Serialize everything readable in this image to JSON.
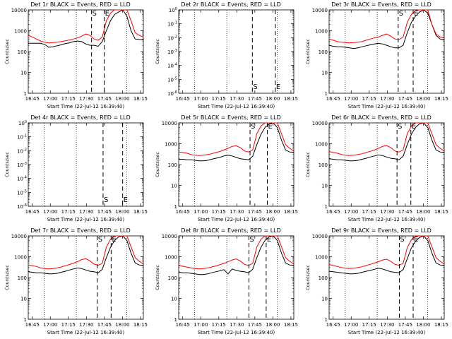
{
  "chart_data": [
    {
      "id": "p1",
      "type": "line",
      "title": "Det 1r BLACK = Events, RED = LLD",
      "ylabel": "Counts/sec",
      "xlabel": "Start Time (22-Jul-12 16:39:40)",
      "yscale": "log",
      "ylim": [
        1,
        10000
      ],
      "yticks": [
        "1",
        "10",
        "100",
        "1000",
        "10000"
      ],
      "xticks": [
        "16:45",
        "17:00",
        "17:15",
        "17:30",
        "17:45",
        "18:00",
        "18:15"
      ],
      "series": [
        {
          "color": "#000000",
          "y": [
            250,
            250,
            250,
            250,
            220,
            160,
            170,
            190,
            210,
            240,
            260,
            300,
            320,
            300,
            230,
            200,
            200,
            180,
            300,
            1000,
            3000,
            6000,
            8000,
            10000,
            5000,
            1000,
            400,
            380,
            370
          ]
        },
        {
          "color": "#ff0000",
          "y": [
            600,
            500,
            400,
            320,
            280,
            260,
            270,
            280,
            300,
            330,
            360,
            400,
            450,
            550,
            700,
            600,
            400,
            350,
            500,
            3000,
            7000,
            10000,
            10000,
            10000,
            10000,
            3000,
            800,
            600,
            500
          ]
        }
      ],
      "markers": [
        {
          "label": "S",
          "pos": 0.55
        },
        {
          "label": "E",
          "pos": 0.66
        }
      ]
    },
    {
      "id": "p2",
      "type": "line",
      "title": "Det 2r BLACK = Events, RED = LLD",
      "ylabel": "Counts/sec",
      "xlabel": "Start Time (22-Jul-12 16:39:40)",
      "yscale": "log",
      "ylim": [
        "10^-6",
        "10^0"
      ],
      "yticks": [
        "10^-6",
        "10^-5",
        "10^-4",
        "10^-3",
        "10^-2",
        "10^-1",
        "10^0"
      ],
      "xticks": [
        "16:45",
        "17:00",
        "17:15",
        "17:30",
        "17:45",
        "18:00",
        "18:15"
      ],
      "series": [],
      "markers": [
        {
          "label": "S",
          "pos": 0.64
        },
        {
          "label": "E",
          "pos": 0.84
        }
      ]
    },
    {
      "id": "p3",
      "type": "line",
      "title": "Det 3r BLACK = Events, RED = LLD",
      "ylabel": "Counts/sec",
      "xlabel": "Start Time (22-Jul-12 16:39:40)",
      "yscale": "log",
      "ylim": [
        1,
        10000
      ],
      "yticks": [
        "1",
        "10",
        "100",
        "1000",
        "10000"
      ],
      "xticks": [
        "16:45",
        "17:00",
        "17:15",
        "17:30",
        "17:45",
        "18:00",
        "18:15"
      ],
      "series": [
        {
          "color": "#000000",
          "y": [
            200,
            180,
            170,
            170,
            160,
            150,
            140,
            150,
            170,
            190,
            210,
            230,
            250,
            230,
            200,
            170,
            150,
            150,
            200,
            800,
            2500,
            5000,
            8000,
            10000,
            7000,
            2000,
            600,
            400,
            350
          ]
        },
        {
          "color": "#ff0000",
          "y": [
            400,
            350,
            300,
            280,
            270,
            260,
            270,
            280,
            300,
            350,
            400,
            450,
            500,
            600,
            700,
            550,
            400,
            380,
            500,
            2500,
            6000,
            9000,
            10000,
            10000,
            10000,
            2000,
            700,
            500,
            450
          ]
        }
      ],
      "markers": [
        {
          "label": "S",
          "pos": 0.6
        },
        {
          "label": "E",
          "pos": 0.73
        }
      ]
    },
    {
      "id": "p4",
      "type": "line",
      "title": "Det 4r BLACK = Events, RED = LLD",
      "ylabel": "Counts/sec",
      "xlabel": "Start Time (22-Jul-12 16:39:40)",
      "yscale": "log",
      "ylim": [
        "10^-6",
        "10^0"
      ],
      "yticks": [
        "10^-6",
        "10^-5",
        "10^-4",
        "10^-3",
        "10^-2",
        "10^-1",
        "10^0"
      ],
      "xticks": [
        "16:45",
        "17:00",
        "17:15",
        "17:30",
        "17:45",
        "18:00",
        "18:15"
      ],
      "series": [],
      "markers": [
        {
          "label": "S",
          "pos": 0.65
        },
        {
          "label": "E",
          "pos": 0.82
        }
      ]
    },
    {
      "id": "p5",
      "type": "line",
      "title": "Det 5r BLACK = Events, RED = LLD",
      "ylabel": "Counts/sec",
      "xlabel": "Start Time (22-Jul-12 16:39:40)",
      "yscale": "log",
      "ylim": [
        1,
        10000
      ],
      "yticks": [
        "1",
        "10",
        "100",
        "1000",
        "10000"
      ],
      "xticks": [
        "16:45",
        "17:00",
        "17:15",
        "17:30",
        "17:45",
        "18:00",
        "18:15"
      ],
      "series": [
        {
          "color": "#000000",
          "y": [
            180,
            180,
            170,
            170,
            160,
            150,
            150,
            160,
            180,
            200,
            220,
            260,
            280,
            260,
            220,
            190,
            180,
            170,
            250,
            900,
            2800,
            6000,
            9000,
            10000,
            6000,
            1500,
            500,
            400,
            380
          ]
        },
        {
          "color": "#ff0000",
          "y": [
            400,
            380,
            350,
            300,
            280,
            270,
            280,
            300,
            330,
            380,
            420,
            500,
            600,
            750,
            800,
            650,
            450,
            400,
            500,
            3000,
            7000,
            10000,
            10000,
            10000,
            10000,
            3000,
            900,
            600,
            450
          ]
        }
      ],
      "markers": [
        {
          "label": "S",
          "pos": 0.62
        },
        {
          "label": "E",
          "pos": 0.77
        }
      ]
    },
    {
      "id": "p6",
      "type": "line",
      "title": "Det 6r BLACK = Events, RED = LLD",
      "ylabel": "Counts/sec",
      "xlabel": "Start Time (22-Jul-12 16:39:40)",
      "yscale": "log",
      "ylim": [
        1,
        10000
      ],
      "yticks": [
        "1",
        "10",
        "100",
        "1000",
        "10000"
      ],
      "xticks": [
        "16:45",
        "17:00",
        "17:15",
        "17:30",
        "17:45",
        "18:00",
        "18:15"
      ],
      "series": [
        {
          "color": "#000000",
          "y": [
            190,
            180,
            170,
            170,
            160,
            150,
            150,
            160,
            180,
            200,
            230,
            260,
            290,
            270,
            230,
            200,
            190,
            170,
            250,
            900,
            2800,
            6000,
            9000,
            10000,
            6000,
            1500,
            500,
            400,
            380
          ]
        },
        {
          "color": "#ff0000",
          "y": [
            420,
            380,
            350,
            300,
            280,
            270,
            280,
            300,
            330,
            380,
            430,
            500,
            600,
            750,
            820,
            650,
            450,
            400,
            500,
            3000,
            7000,
            10000,
            10000,
            10000,
            10000,
            3000,
            900,
            600,
            450
          ]
        }
      ],
      "markers": [
        {
          "label": "S",
          "pos": 0.59
        },
        {
          "label": "E",
          "pos": 0.71
        }
      ]
    },
    {
      "id": "p7",
      "type": "line",
      "title": "Det 7r BLACK = Events, RED = LLD",
      "ylabel": "Counts/sec",
      "xlabel": "Start Time (22-Jul-12 16:39:40)",
      "yscale": "log",
      "ylim": [
        1,
        10000
      ],
      "yticks": [
        "1",
        "10",
        "100",
        "1000",
        "10000"
      ],
      "xticks": [
        "16:45",
        "17:00",
        "17:15",
        "17:30",
        "17:45",
        "18:00",
        "18:15"
      ],
      "series": [
        {
          "color": "#000000",
          "y": [
            190,
            180,
            170,
            170,
            160,
            150,
            150,
            160,
            180,
            200,
            230,
            260,
            290,
            270,
            230,
            200,
            190,
            170,
            250,
            900,
            2800,
            6000,
            9000,
            10000,
            6000,
            1500,
            500,
            400,
            380
          ]
        },
        {
          "color": "#ff0000",
          "y": [
            400,
            370,
            340,
            290,
            270,
            260,
            270,
            290,
            320,
            370,
            420,
            490,
            590,
            730,
            800,
            640,
            440,
            390,
            480,
            2900,
            6800,
            10000,
            10000,
            10000,
            10000,
            3000,
            900,
            600,
            450
          ]
        }
      ],
      "markers": [
        {
          "label": "S",
          "pos": 0.6
        },
        {
          "label": "E",
          "pos": 0.72
        }
      ]
    },
    {
      "id": "p8",
      "type": "line",
      "title": "Det 8r BLACK = Events, RED = LLD",
      "ylabel": "Counts/sec",
      "xlabel": "Start Time (22-Jul-12 16:39:40)",
      "yscale": "log",
      "ylim": [
        1,
        10000
      ],
      "yticks": [
        "1",
        "10",
        "100",
        "1000",
        "10000"
      ],
      "xticks": [
        "16:45",
        "17:00",
        "17:15",
        "17:30",
        "17:45",
        "18:00",
        "18:15"
      ],
      "series": [
        {
          "color": "#000000",
          "y": [
            180,
            170,
            170,
            160,
            150,
            140,
            140,
            150,
            170,
            190,
            210,
            240,
            150,
            260,
            220,
            200,
            190,
            170,
            250,
            900,
            2800,
            6000,
            9000,
            10000,
            6000,
            1500,
            500,
            400,
            380
          ]
        },
        {
          "color": "#ff0000",
          "y": [
            380,
            350,
            320,
            290,
            270,
            260,
            270,
            290,
            320,
            360,
            410,
            480,
            570,
            700,
            780,
            620,
            430,
            380,
            480,
            2900,
            6800,
            10000,
            10000,
            10000,
            10000,
            3000,
            900,
            600,
            450
          ]
        }
      ],
      "markers": [
        {
          "label": "S",
          "pos": 0.61
        },
        {
          "label": "E",
          "pos": 0.76
        }
      ]
    },
    {
      "id": "p9",
      "type": "line",
      "title": "Det 9r BLACK = Events, RED = LLD",
      "ylabel": "Counts/sec",
      "xlabel": "Start Time (22-Jul-12 16:39:40)",
      "yscale": "log",
      "ylim": [
        1,
        10000
      ],
      "yticks": [
        "1",
        "10",
        "100",
        "1000",
        "10000"
      ],
      "xticks": [
        "16:45",
        "17:00",
        "17:15",
        "17:30",
        "17:45",
        "18:00",
        "18:15"
      ],
      "series": [
        {
          "color": "#000000",
          "y": [
            200,
            190,
            180,
            170,
            160,
            150,
            150,
            160,
            180,
            200,
            220,
            250,
            280,
            260,
            220,
            190,
            180,
            170,
            240,
            800,
            2600,
            5500,
            8500,
            10000,
            6000,
            1500,
            500,
            400,
            380
          ]
        },
        {
          "color": "#ff0000",
          "y": [
            420,
            380,
            340,
            300,
            280,
            270,
            280,
            300,
            330,
            380,
            430,
            500,
            580,
            700,
            760,
            600,
            430,
            390,
            480,
            2700,
            6500,
            9500,
            10000,
            10000,
            10000,
            3000,
            900,
            600,
            450
          ]
        }
      ],
      "markers": [
        {
          "label": "S",
          "pos": 0.61
        },
        {
          "label": "E",
          "pos": 0.73
        }
      ]
    }
  ]
}
